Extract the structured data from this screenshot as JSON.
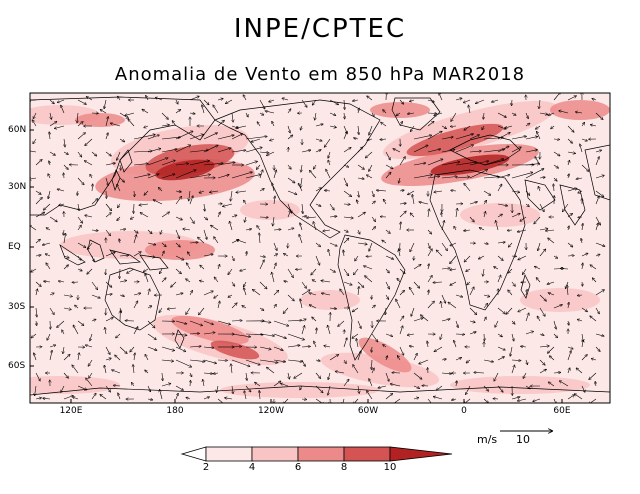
{
  "header": {
    "agency": "INPE/CPTEC",
    "title": "Anomalia de Vento em 850 hPa MAR2018"
  },
  "map": {
    "lat_labels": [
      "60N",
      "30N",
      "EQ",
      "30S",
      "60S"
    ],
    "lon_labels": [
      "120E",
      "180",
      "120W",
      "60W",
      "0",
      "60E"
    ],
    "projection": "global cylindrical, 90E to 90E"
  },
  "colorbar": {
    "ticks": [
      "2",
      "4",
      "6",
      "8",
      "10"
    ],
    "colors": [
      "#fde8e8",
      "#f9c4c4",
      "#ec8a8a",
      "#d45353",
      "#b22222"
    ]
  },
  "legend": {
    "units": "m/s",
    "reference_value": "10"
  },
  "colors": {
    "anomaly_max": "#b22222",
    "anomaly_low": "#fde8e8",
    "coast": "#000000"
  }
}
